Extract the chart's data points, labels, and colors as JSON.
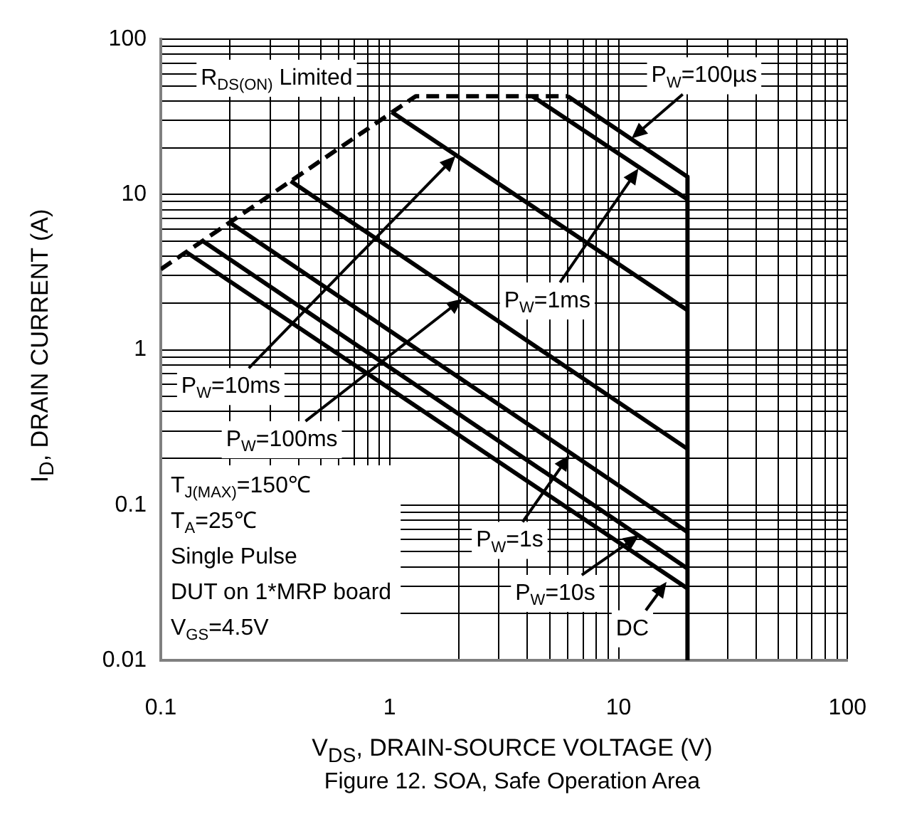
{
  "chart_data": {
    "type": "line",
    "title": "Figure 12. SOA, Safe Operation Area",
    "xlabel": "V$_{DS}$, DRAIN-SOURCE VOLTAGE (V)",
    "ylabel": "I$_{D}$, DRAIN CURRENT (A)",
    "log": "xy",
    "xlim": [
      0.1,
      100
    ],
    "ylim": [
      0.01,
      100
    ],
    "xticks": [
      0.1,
      1,
      10,
      100
    ],
    "yticks": [
      0.01,
      0.1,
      1,
      10,
      100
    ],
    "grid": true,
    "marker": "none",
    "line_style": "solid",
    "series": [
      {
        "color": "#000000",
        "line_style": "dashed",
        "x": [
          0.1,
          1.3,
          6
        ],
        "values": [
          3.3,
          43,
          43
        ]
      },
      {
        "color": "#000000",
        "x": [
          6,
          20,
          20
        ],
        "values": [
          43,
          13,
          0.01
        ]
      },
      {
        "color": "#000000",
        "x": [
          4.2,
          20
        ],
        "values": [
          43,
          9.3
        ]
      },
      {
        "color": "#000000",
        "x": [
          1.02,
          20
        ],
        "values": [
          34,
          1.8
        ]
      },
      {
        "color": "#000000",
        "x": [
          0.37,
          20
        ],
        "values": [
          12.2,
          0.23
        ]
      },
      {
        "color": "#000000",
        "x": [
          0.2,
          20
        ],
        "values": [
          6.6,
          0.067
        ]
      },
      {
        "color": "#000000",
        "x": [
          0.153,
          20
        ],
        "values": [
          5.0,
          0.039
        ]
      },
      {
        "color": "#000000",
        "x": [
          0.128,
          20
        ],
        "values": [
          4.3,
          0.029
        ]
      }
    ],
    "annotations": [
      {
        "text": "R$_{DS(ON)}$ Limited",
        "x": 0.5,
        "y": 16.5
      },
      {
        "text": "P$_{W}$=100µs",
        "x": 11.4,
        "y": 23
      },
      {
        "text": "P$_{W}$=1ms",
        "x": 12.2,
        "y": 14.7
      },
      {
        "text": "P$_{W}$=10ms",
        "x": 1.94,
        "y": 17.7
      },
      {
        "text": "P$_{W}$=100ms",
        "x": 2.08,
        "y": 2.13
      },
      {
        "text": "P$_{W}$=1s",
        "x": 6.1,
        "y": 0.21
      },
      {
        "text": "P$_{W}$=10s",
        "x": 12.3,
        "y": 0.064
      },
      {
        "text": "DC",
        "x": 16.2,
        "y": 0.032
      },
      "T$_{J(MAX)}$=150℃",
      "T$_{A}$=25℃",
      "Single Pulse",
      "DUT on 1*MRP board",
      "V$_{GS}$=4.5V"
    ]
  }
}
